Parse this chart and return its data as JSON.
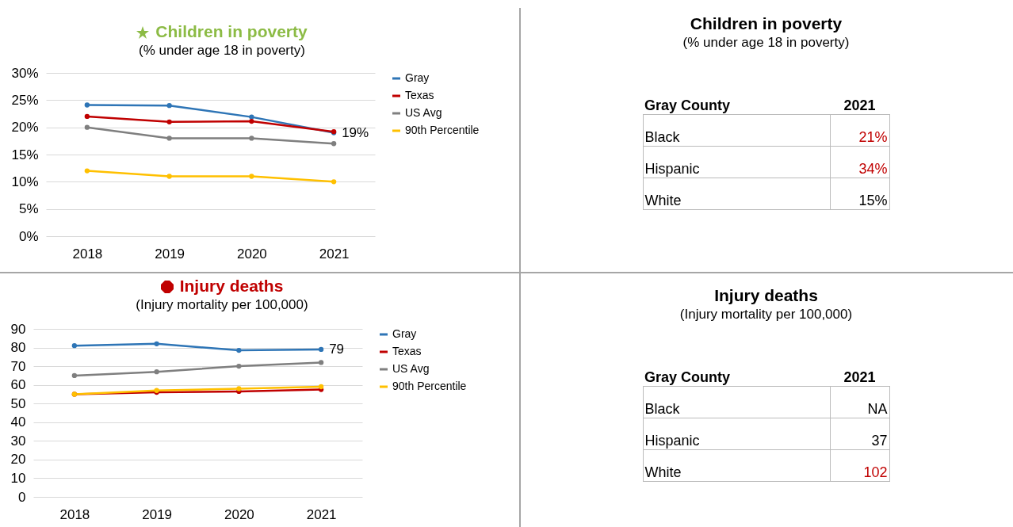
{
  "chart_data": [
    {
      "type": "line",
      "title": "Children in poverty",
      "subtitle": "(% under age 18 in poverty)",
      "categories": [
        "2018",
        "2019",
        "2020",
        "2021"
      ],
      "series": [
        {
          "name": "Gray",
          "color": "#2e75b6",
          "values": [
            24.1,
            24,
            21.9,
            19
          ]
        },
        {
          "name": "Texas",
          "color": "#c00000",
          "values": [
            22,
            21,
            21.1,
            19.2
          ]
        },
        {
          "name": "US Avg",
          "color": "#7f7f7f",
          "values": [
            20,
            18,
            18,
            17
          ]
        },
        {
          "name": "90th Percentile",
          "color": "#ffc000",
          "values": [
            12,
            11,
            11,
            10
          ]
        }
      ],
      "ylim": [
        0,
        30
      ],
      "yticks": [
        {
          "value": 0,
          "label": "0%"
        },
        {
          "value": 5,
          "label": "5%"
        },
        {
          "value": 10,
          "label": "10%"
        },
        {
          "value": 15,
          "label": "15%"
        },
        {
          "value": 20,
          "label": "20%"
        },
        {
          "value": 25,
          "label": "25%"
        },
        {
          "value": 30,
          "label": "30%"
        }
      ],
      "annotations": [
        {
          "text": "19%",
          "x": "2021",
          "y": 19
        }
      ],
      "grid": "y",
      "legend": "right",
      "marker": "circle",
      "line_style": "solid"
    },
    {
      "type": "other",
      "title": "Children in poverty",
      "subtitle": "(% under age 18 in poverty)",
      "annotations": [
        "Gray County",
        "2021"
      ],
      "categories": [
        "Black",
        "Hispanic",
        "White"
      ],
      "values": [
        21,
        34,
        15
      ],
      "value_labels": [
        "21%",
        "34%",
        "15%"
      ],
      "colors": [
        "#c00000",
        "#c00000",
        "#000000"
      ]
    },
    {
      "type": "line",
      "title": "Injury deaths",
      "subtitle": "(Injury mortality per 100,000)",
      "categories": [
        "2018",
        "2019",
        "2020",
        "2021"
      ],
      "series": [
        {
          "name": "Gray",
          "color": "#2e75b6",
          "values": [
            81,
            82,
            78.5,
            79
          ]
        },
        {
          "name": "Texas",
          "color": "#c00000",
          "values": [
            55,
            56,
            56.5,
            57.5
          ]
        },
        {
          "name": "US Avg",
          "color": "#7f7f7f",
          "values": [
            65,
            67,
            70,
            72
          ]
        },
        {
          "name": "90th Percentile",
          "color": "#ffc000",
          "values": [
            55,
            57,
            58,
            59
          ]
        }
      ],
      "ylim": [
        0,
        90
      ],
      "yticks": [
        0,
        10,
        20,
        30,
        40,
        50,
        60,
        70,
        80,
        90
      ],
      "annotations": [
        {
          "text": "79",
          "x": "2021",
          "y": 79
        }
      ],
      "grid": "y",
      "legend": "right",
      "marker": "circle",
      "line_style": "solid"
    },
    {
      "type": "other",
      "title": "Injury deaths",
      "subtitle": "(Injury mortality per 100,000)",
      "annotations": [
        "Gray County",
        "2021"
      ],
      "categories": [
        "Black",
        "Hispanic",
        "White"
      ],
      "values": [
        null,
        37,
        102
      ],
      "value_labels": [
        "NA",
        "37",
        "102"
      ],
      "colors": [
        "#000000",
        "#000000",
        "#c00000"
      ]
    }
  ]
}
